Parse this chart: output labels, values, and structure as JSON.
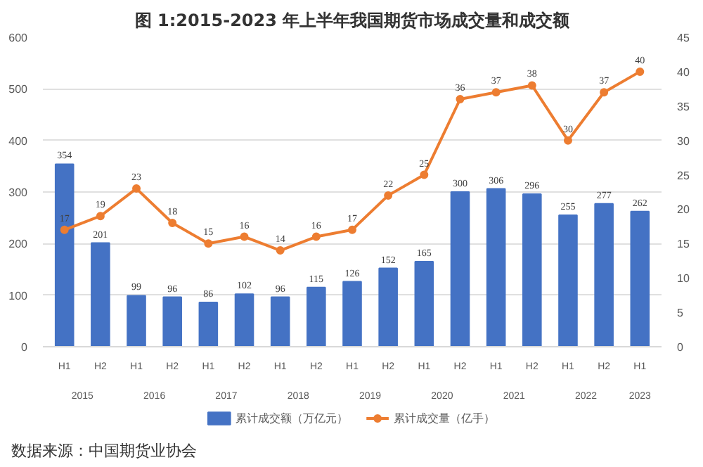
{
  "chart_data": {
    "type": "bar",
    "title": "图 1:2015-2023 年上半年我国期货市场成交量和成交额",
    "categories": [
      "H1",
      "H2",
      "H1",
      "H2",
      "H1",
      "H2",
      "H1",
      "H2",
      "H1",
      "H2",
      "H1",
      "H2",
      "H1",
      "H2",
      "H1",
      "H2",
      "H1"
    ],
    "series": [
      {
        "name": "累计成交额（万亿元）",
        "color": "#4472c4",
        "values": [
          354,
          201,
          99,
          96,
          86,
          102,
          96,
          115,
          126,
          152,
          165,
          300,
          306,
          296,
          255,
          277,
          262
        ]
      },
      {
        "name": "累计成交量（亿手）",
        "color": "#ed7d31",
        "type": "line",
        "axis": "y2",
        "values": [
          17,
          19,
          23,
          18,
          15,
          16,
          14,
          16,
          17,
          22,
          25,
          36,
          37,
          38,
          30,
          37,
          40
        ]
      }
    ],
    "annotations": [
      "2015",
      "2016",
      "2017",
      "2018",
      "2019",
      "2020",
      "2021",
      "2022",
      "2023",
      "数据来源：中国期货业协会"
    ],
    "ylim": [
      0,
      600
    ],
    "yticks": [
      0,
      100,
      200,
      300,
      400,
      500,
      600
    ],
    "y2lim": [
      0,
      45
    ],
    "y2ticks": [
      0,
      5,
      10,
      15,
      20,
      25,
      30,
      35,
      40,
      45
    ],
    "grid": "y",
    "legend": "bottom",
    "marker": "circle",
    "data_labels": true
  }
}
